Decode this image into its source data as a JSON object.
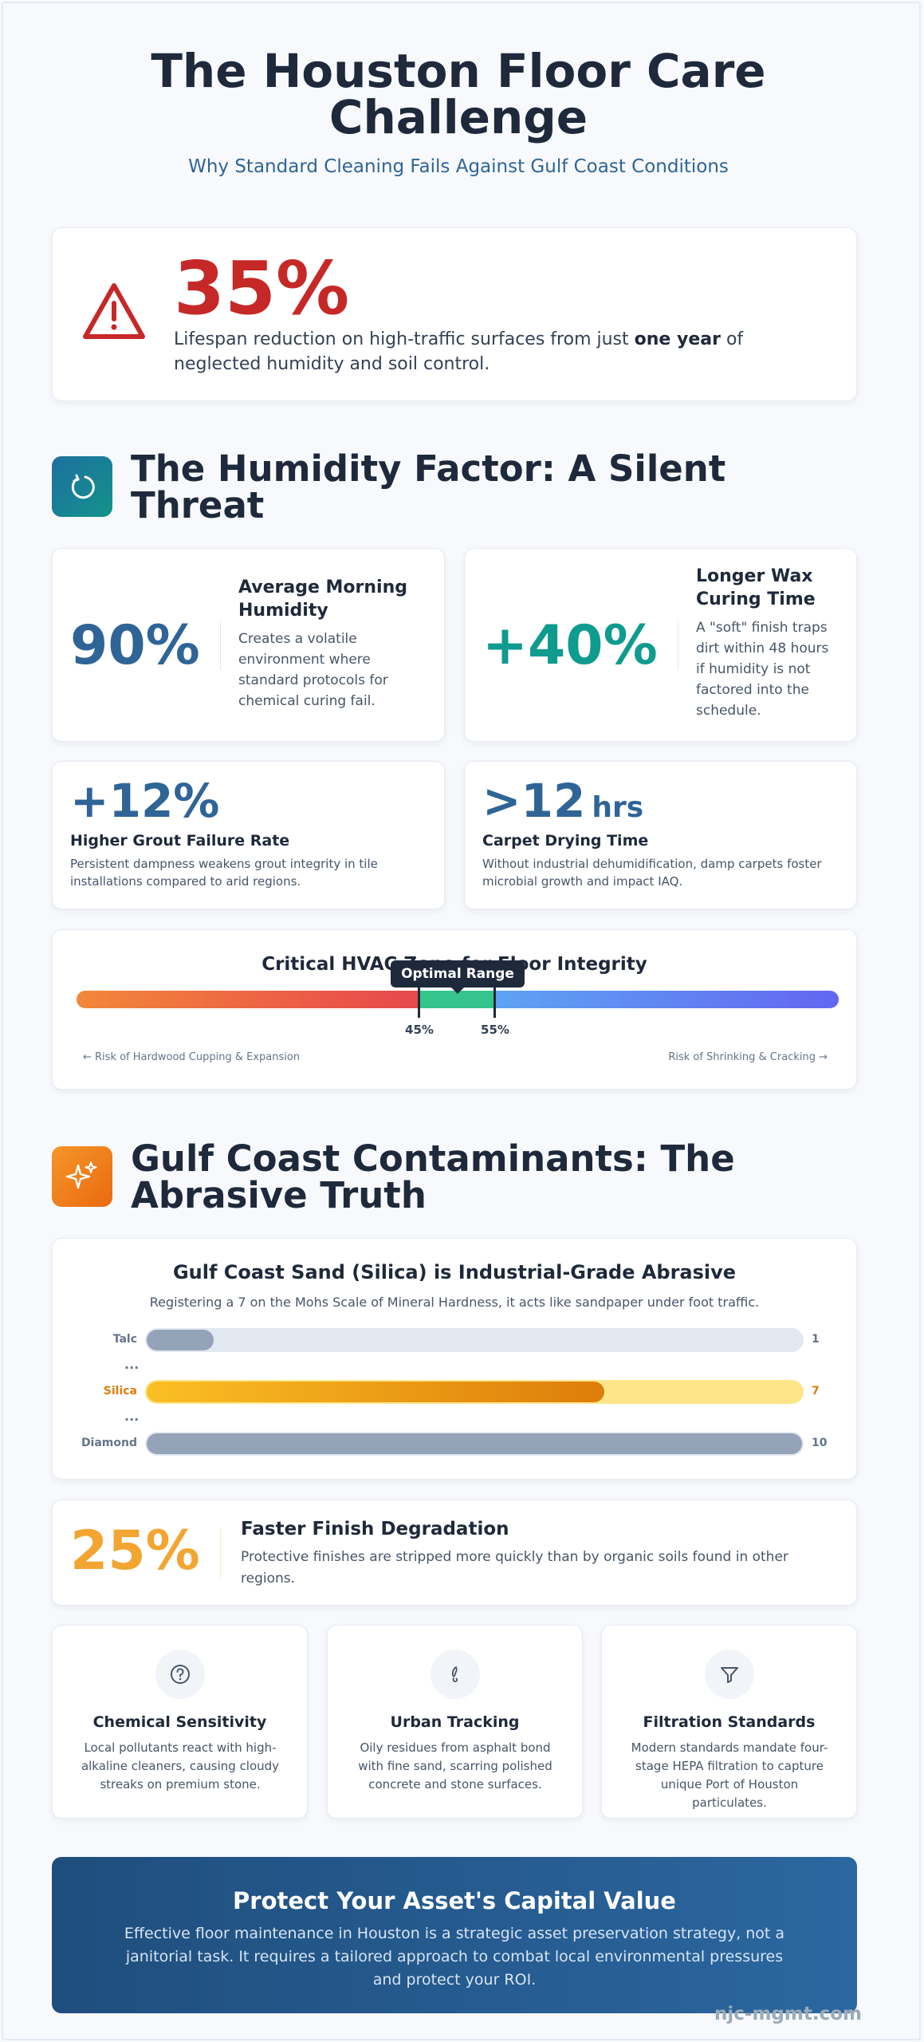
{
  "header": {
    "title": "The Houston Floor Care Challenge",
    "subtitle": "Why Standard Cleaning Fails Against Gulf Coast Conditions"
  },
  "hero_stat": {
    "value": "35%",
    "desc_before": "Lifespan reduction on high-traffic surfaces from just ",
    "desc_bold": "one year",
    "desc_after": " of neglected humidity and soil control."
  },
  "humidity": {
    "title": "The Humidity Factor: A Silent Threat",
    "stats": [
      {
        "value": "90%",
        "title": "Average Morning Humidity",
        "desc": "Creates a volatile environment where standard protocols for chemical curing fail."
      },
      {
        "value": "+40%",
        "title": "Longer Wax Curing Time",
        "desc": "A \"soft\" finish traps dirt within 48 hours if humidity is not factored into the schedule."
      }
    ],
    "mini": [
      {
        "value": "+12%",
        "unit": "",
        "title": "Higher Grout Failure Rate",
        "desc": "Persistent dampness weakens grout integrity in tile installations compared to arid regions."
      },
      {
        "value": ">12",
        "unit": "hrs",
        "title": "Carpet Drying Time",
        "desc": "Without industrial dehumidification, damp carpets foster microbial growth and impact IAQ."
      }
    ],
    "hvac": {
      "title": "Critical HVAC Zone for Floor Integrity",
      "tooltip": "Optimal Range",
      "low_label": "45%",
      "high_label": "55%",
      "range_low": 45,
      "range_high": 55,
      "left_risk": "← Risk of Hardwood Cupping & Expansion",
      "right_risk": "Risk of Shrinking & Cracking →"
    }
  },
  "contaminants": {
    "title": "Gulf Coast Contaminants: The Abrasive Truth",
    "mohs": {
      "title": "Gulf Coast Sand (Silica) is Industrial-Grade Abrasive",
      "subtitle": "Registering a 7 on the Mohs Scale of Mineral Hardness, it acts like sandpaper under foot traffic.",
      "max": 10,
      "ellipsis": "...",
      "rows": [
        {
          "label": "Talc",
          "value": 1,
          "display": "1"
        },
        {
          "label": "Silica",
          "value": 7,
          "display": "7"
        },
        {
          "label": "Diamond",
          "value": 10,
          "display": "10"
        }
      ]
    },
    "degradation": {
      "value": "25%",
      "title": "Faster Finish Degradation",
      "desc": "Protective finishes are stripped more quickly than by organic soils found in other regions."
    },
    "cards": [
      {
        "icon": "question-circle-icon",
        "title": "Chemical Sensitivity",
        "desc": "Local pollutants react with high-alkaline cleaners, causing cloudy streaks on premium stone."
      },
      {
        "icon": "footprint-icon",
        "title": "Urban Tracking",
        "desc": "Oily residues from asphalt bond with fine sand, scarring polished concrete and stone surfaces."
      },
      {
        "icon": "filter-icon",
        "title": "Filtration Standards",
        "desc": "Modern standards mandate four-stage HEPA filtration to capture unique Port of Houston particulates."
      }
    ]
  },
  "cta": {
    "title": "Protect Your Asset's Capital Value",
    "desc": "Effective floor maintenance in Houston is a strategic asset preservation strategy, not a janitorial task. It requires a tailored approach to combat local environmental pressures and protect your ROI."
  },
  "watermark": "njc-mgmt.com",
  "colors": {
    "red": "#c62828",
    "blue": "#2f6496",
    "teal": "#0f9b8e",
    "amber": "#f2a531",
    "navy": "#1e293b"
  }
}
